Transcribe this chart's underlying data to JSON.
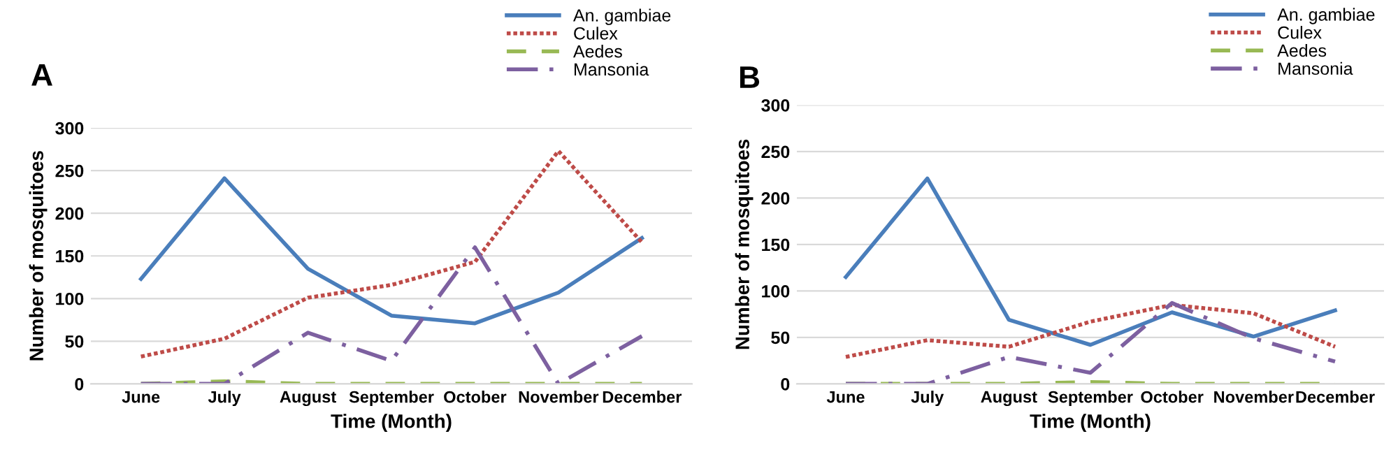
{
  "chart_data": [
    {
      "type": "line",
      "title": "A",
      "xlabel": "Time (Month)",
      "ylabel": "Number of mosquitoes",
      "categories": [
        "June",
        "July",
        "August",
        "September",
        "October",
        "November",
        "December"
      ],
      "series": [
        {
          "name": "An. gambiae",
          "color": "#4a7ebb",
          "line_style": "solid",
          "values": [
            123,
            241,
            135,
            80,
            71,
            107,
            171
          ]
        },
        {
          "name": "Culex",
          "color": "#be4b48",
          "line_style": "dotted",
          "values": [
            32,
            53,
            101,
            116,
            143,
            273,
            166
          ]
        },
        {
          "name": "Aedes",
          "color": "#98b954",
          "line_style": "dashed",
          "values": [
            0,
            3,
            0,
            0,
            0,
            0,
            0
          ]
        },
        {
          "name": "Mansonia",
          "color": "#7d60a0",
          "line_style": "dashdot",
          "values": [
            0,
            0,
            60,
            27,
            160,
            0,
            56
          ]
        }
      ],
      "ylim": [
        0,
        300
      ],
      "yticks": [
        0,
        50,
        100,
        150,
        200,
        250,
        300
      ],
      "grid": "y",
      "legend": "top right",
      "marker": "none"
    },
    {
      "type": "line",
      "title": "B",
      "xlabel": "Time (Month)",
      "ylabel": "Number of mosquitoes",
      "categories": [
        "June",
        "July",
        "August",
        "September",
        "October",
        "November",
        "December"
      ],
      "series": [
        {
          "name": "An. gambiae",
          "color": "#4a7ebb",
          "line_style": "solid",
          "values": [
            115,
            221,
            69,
            42,
            77,
            51,
            79
          ]
        },
        {
          "name": "Culex",
          "color": "#be4b48",
          "line_style": "dotted",
          "values": [
            29,
            47,
            40,
            67,
            85,
            76,
            40
          ]
        },
        {
          "name": "Aedes",
          "color": "#98b954",
          "line_style": "dashed",
          "values": [
            0,
            0,
            0,
            2,
            0,
            0,
            0
          ]
        },
        {
          "name": "Mansonia",
          "color": "#7d60a0",
          "line_style": "dashdot",
          "values": [
            0,
            0,
            29,
            12,
            87,
            49,
            24
          ]
        }
      ],
      "ylim": [
        0,
        300
      ],
      "yticks": [
        0,
        50,
        100,
        150,
        200,
        250,
        300
      ],
      "grid": "y",
      "legend": "top right",
      "marker": "none"
    }
  ]
}
